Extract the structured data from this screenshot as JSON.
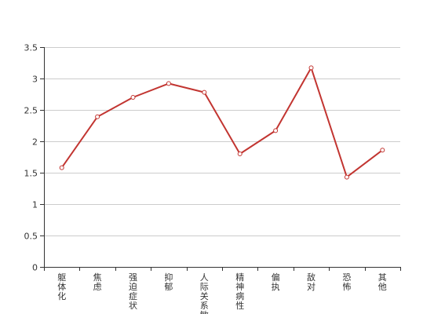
{
  "chart_data": {
    "type": "line",
    "categories": [
      "躯体化",
      "焦虑",
      "强迫症状",
      "抑郁",
      "人际关系敏感",
      "精神病性",
      "偏执",
      "敌对",
      "恐怖",
      "其他"
    ],
    "series": [
      {
        "values": [
          1.58,
          2.39,
          2.7,
          2.92,
          2.78,
          1.8,
          2.17,
          3.17,
          1.43,
          1.86
        ]
      }
    ],
    "ylim": [
      0,
      3.5
    ],
    "yticks": [
      "0",
      "0.5",
      "1",
      "1.5",
      "2",
      "2.5",
      "3",
      "3.5"
    ],
    "grid": true,
    "title": "",
    "xlabel": "",
    "ylabel": "",
    "colors": {
      "line": "#c23531",
      "grid": "#cccccc",
      "axis": "#333333",
      "marker_fill": "#ffffff"
    }
  }
}
